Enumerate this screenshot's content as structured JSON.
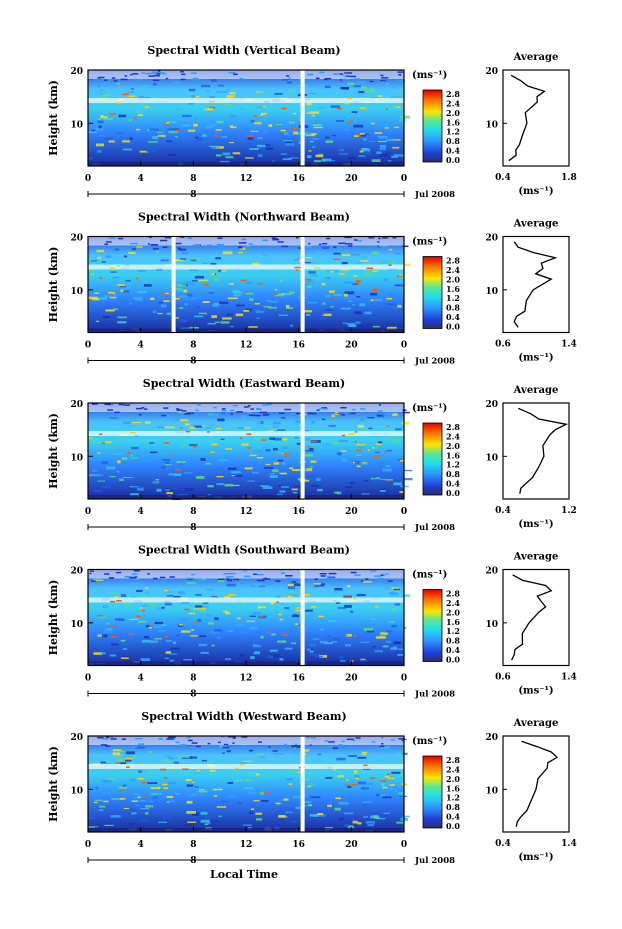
{
  "x_axis_label": "Local Time",
  "date_label": "Jul 2008",
  "x_ticks": [
    "0",
    "4",
    "8",
    "12",
    "16",
    "20",
    "0"
  ],
  "y_label": "Height (km)",
  "y_ticks": [
    "20",
    "10"
  ],
  "colorbar_unit": "(ms⁻¹)",
  "colorbar_ticks": [
    "2.8",
    "2.4",
    "2.0",
    "1.6",
    "1.2",
    "0.8",
    "0.4",
    "0.0"
  ],
  "avg_title": "Average",
  "avg_xlabel": "(ms⁻¹)",
  "colors": {
    "low": "#1a237e",
    "mid": "#00c8e0",
    "high": "#ff3300",
    "gap": "#ffffff",
    "line": "#000000"
  },
  "chart_data": [
    {
      "type": "heatmap",
      "title": "Spectral Width (Vertical Beam)",
      "xlim": [
        0,
        24
      ],
      "ylim": [
        2,
        20
      ],
      "clim": [
        0,
        2.8
      ],
      "gaps": [
        16.3
      ],
      "avg_xlim": [
        0.4,
        1.8
      ],
      "avg_ticks": [
        "0.4",
        "1.8"
      ],
      "avg_profile": {
        "height": [
          3,
          4,
          5,
          6,
          8,
          10,
          12,
          14,
          15,
          16,
          17,
          18,
          19
        ],
        "value": [
          0.55,
          0.65,
          0.7,
          0.72,
          0.85,
          0.88,
          0.9,
          1.1,
          1.15,
          1.25,
          0.95,
          0.75,
          0.6
        ]
      }
    },
    {
      "type": "heatmap",
      "title": "Spectral Width (Northward Beam)",
      "xlim": [
        0,
        24
      ],
      "ylim": [
        2,
        20
      ],
      "clim": [
        0,
        2.8
      ],
      "gaps": [
        6.5,
        16.3
      ],
      "avg_xlim": [
        0.6,
        1.4
      ],
      "avg_ticks": [
        "0.6",
        "1.4"
      ],
      "avg_profile": {
        "height": [
          3,
          4,
          5,
          6,
          8,
          10,
          12,
          13,
          14,
          15,
          16,
          17,
          18,
          19
        ],
        "value": [
          0.8,
          0.72,
          0.78,
          0.85,
          0.9,
          0.95,
          1.2,
          0.98,
          1.1,
          1.05,
          1.25,
          0.95,
          0.8,
          0.72
        ]
      }
    },
    {
      "type": "heatmap",
      "title": "Spectral Width (Eastward Beam)",
      "xlim": [
        0,
        24
      ],
      "ylim": [
        2,
        20
      ],
      "clim": [
        0,
        2.8
      ],
      "gaps": [
        16.3
      ],
      "avg_xlim": [
        0.4,
        1.2
      ],
      "avg_ticks": [
        "0.4",
        "1.2"
      ],
      "avg_profile": {
        "height": [
          3,
          4,
          5,
          6,
          8,
          10,
          12,
          14,
          15,
          16,
          17,
          18,
          19
        ],
        "value": [
          0.62,
          0.6,
          0.7,
          0.74,
          0.85,
          0.88,
          0.9,
          0.95,
          1.05,
          1.15,
          0.85,
          0.72,
          0.6
        ]
      }
    },
    {
      "type": "heatmap",
      "title": "Spectral Width (Southward Beam)",
      "xlim": [
        0,
        24
      ],
      "ylim": [
        2,
        20
      ],
      "clim": [
        0,
        2.8
      ],
      "gaps": [
        16.3
      ],
      "avg_xlim": [
        0.6,
        1.4
      ],
      "avg_ticks": [
        "0.6",
        "1.4"
      ],
      "avg_profile": {
        "height": [
          3,
          4,
          5,
          6,
          8,
          10,
          12,
          13,
          14,
          15,
          16,
          17,
          18,
          19
        ],
        "value": [
          0.72,
          0.72,
          0.76,
          0.82,
          0.85,
          0.9,
          1.05,
          1.1,
          1.08,
          1.0,
          1.2,
          1.1,
          0.85,
          0.7
        ]
      }
    },
    {
      "type": "heatmap",
      "title": "Spectral Width (Westward Beam)",
      "xlim": [
        0,
        24
      ],
      "ylim": [
        2,
        20
      ],
      "clim": [
        0,
        2.8
      ],
      "gaps": [
        16.3
      ],
      "avg_xlim": [
        0.4,
        1.4
      ],
      "avg_ticks": [
        "0.4",
        "1.4"
      ],
      "avg_profile": {
        "height": [
          3,
          4,
          5,
          6,
          8,
          10,
          12,
          14,
          15,
          16,
          17,
          18,
          19
        ],
        "value": [
          0.62,
          0.6,
          0.7,
          0.74,
          0.85,
          0.88,
          0.95,
          1.05,
          1.1,
          1.2,
          1.15,
          0.9,
          0.7
        ]
      }
    }
  ]
}
